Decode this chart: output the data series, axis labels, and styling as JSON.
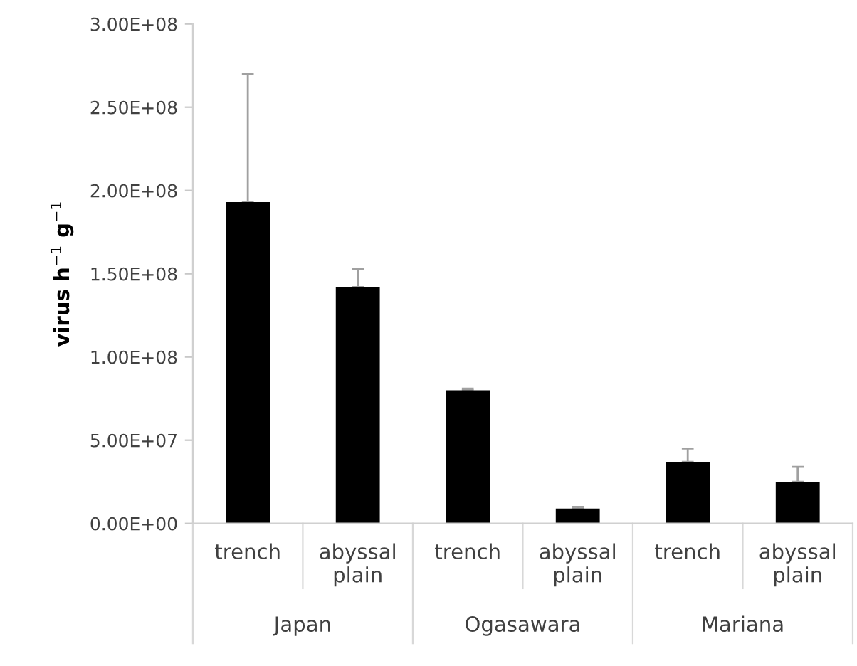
{
  "chart_data": {
    "type": "bar",
    "ylabel": "virus h$^{−1}$ g$^{−1}$",
    "categories": [
      "trench",
      "abyssal plain",
      "trench",
      "abyssal plain",
      "trench",
      "abyssal plain"
    ],
    "values": [
      193000000.0,
      142000000.0,
      80000000.0,
      9000000.0,
      37000000.0,
      25000000.0
    ],
    "errors": [
      [
        193000000.0,
        270000000.0
      ],
      [
        142000000.0,
        153000000.0
      ],
      [
        80000000.0,
        81000000.0
      ],
      [
        9000000.0,
        10000000.0
      ],
      [
        37000000.0,
        45000000.0
      ],
      [
        25000000.0,
        34000000.0
      ]
    ],
    "color": "#000000",
    "ylim": [
      0,
      300000000.0
    ],
    "yticks": [
      {
        "value": 0,
        "label": "0.00E+00"
      },
      {
        "value": 50000000.0,
        "label": "5.00E+07"
      },
      {
        "value": 100000000.0,
        "label": "1.00E+08"
      },
      {
        "value": 150000000.0,
        "label": "1.50E+08"
      },
      {
        "value": 200000000.0,
        "label": "2.00E+08"
      },
      {
        "value": 250000000.0,
        "label": "2.50E+08"
      },
      {
        "value": 300000000.0,
        "label": "3.00E+08"
      }
    ],
    "annotations": [
      "Japan",
      "Ogasawara",
      "Mariana"
    ],
    "grid": false
  }
}
